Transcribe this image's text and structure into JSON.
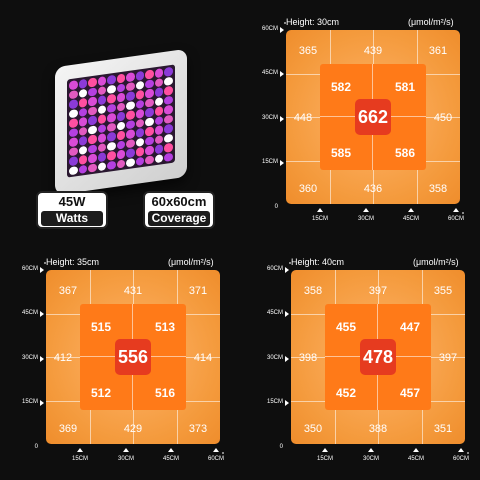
{
  "specs": {
    "wattage": "45W",
    "wattage_label": "Watts",
    "coverage": "60x60cm",
    "coverage_label": "Coverage"
  },
  "panels": [
    {
      "height_label": "Height: 30cm",
      "unit": "(μmol/m²/s)",
      "y_ticks": [
        "60CM",
        "45CM",
        "30CM",
        "15CM",
        "0"
      ],
      "x_ticks": [
        "15CM",
        "30CM",
        "45CM",
        "60CM"
      ],
      "outer": {
        "tl": "365",
        "tm": "439",
        "tr": "361",
        "ml": "448",
        "mr": "450",
        "bl": "360",
        "bm": "436",
        "br": "358"
      },
      "inner": {
        "tl": "582",
        "tr": "581",
        "bl": "585",
        "br": "586"
      },
      "center": "662"
    },
    {
      "height_label": "Height: 35cm",
      "unit": "(μmol/m²/s)",
      "y_ticks": [
        "60CM",
        "45CM",
        "30CM",
        "15CM",
        "0"
      ],
      "x_ticks": [
        "15CM",
        "30CM",
        "45CM",
        "60CM"
      ],
      "outer": {
        "tl": "367",
        "tm": "431",
        "tr": "371",
        "ml": "412",
        "mr": "414",
        "bl": "369",
        "bm": "429",
        "br": "373"
      },
      "inner": {
        "tl": "515",
        "tr": "513",
        "bl": "512",
        "br": "516"
      },
      "center": "556"
    },
    {
      "height_label": "Height: 40cm",
      "unit": "(μmol/m²/s)",
      "y_ticks": [
        "60CM",
        "45CM",
        "30CM",
        "15CM",
        "0"
      ],
      "x_ticks": [
        "15CM",
        "30CM",
        "45CM",
        "60CM"
      ],
      "outer": {
        "tl": "358",
        "tm": "397",
        "tr": "355",
        "ml": "398",
        "mr": "397",
        "bl": "350",
        "bm": "388",
        "br": "351"
      },
      "inner": {
        "tl": "455",
        "tr": "447",
        "bl": "452",
        "br": "457"
      },
      "center": "478"
    }
  ],
  "colors": {
    "background": "#0e0e0e",
    "outer_square": "#f49a3c",
    "inner_square": "#ff7a18",
    "center_box": "#e63b1f"
  }
}
